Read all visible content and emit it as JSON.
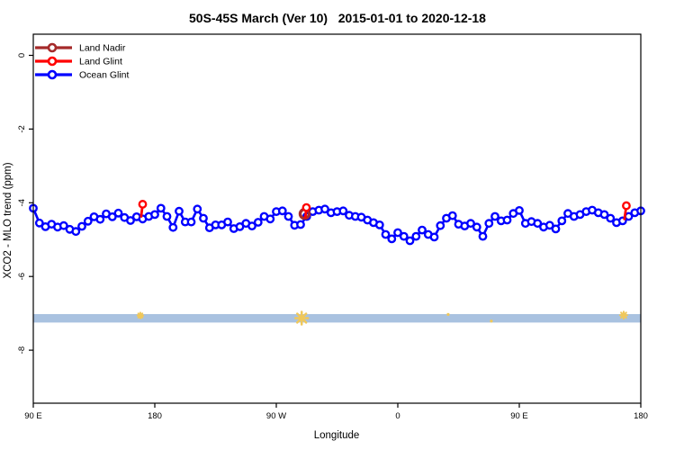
{
  "title": "50S-45S March (Ver 10)   2015-01-01 to 2020-12-18",
  "axes": {
    "x": {
      "label": "Longitude"
    },
    "y": {
      "label": "XCO2 - MLO trend (ppm)"
    }
  },
  "legend": [
    {
      "label": "Land Nadir",
      "color": "#A52A2A"
    },
    {
      "label": "Land Glint",
      "color": "#FF0000"
    },
    {
      "label": "Ocean Glint",
      "color": "#0000FF"
    }
  ],
  "chart_data": {
    "type": "line",
    "title": "50S-45S March (Ver 10)   2015-01-01 to 2020-12-18",
    "xlabel": "Longitude",
    "ylabel": "XCO2 - MLO trend (ppm)",
    "x_domain_deg": [
      90,
      540
    ],
    "x_ticks": [
      {
        "lon": 90,
        "label": "90 E"
      },
      {
        "lon": 180,
        "label": "180"
      },
      {
        "lon": 270,
        "label": "90 W"
      },
      {
        "lon": 360,
        "label": "0"
      },
      {
        "lon": 450,
        "label": "90 E"
      },
      {
        "lon": 540,
        "label": "180"
      }
    ],
    "y_ticks": [
      {
        "value": 0,
        "label": "0"
      },
      {
        "value": -2,
        "label": "-2"
      },
      {
        "value": -4,
        "label": "-4"
      },
      {
        "value": -6,
        "label": "-6"
      },
      {
        "value": -8,
        "label": "-8"
      }
    ],
    "ylim": [
      -9.45,
      0.58
    ],
    "grid": false,
    "legend_position": "top-left",
    "series": [
      {
        "name": "Ocean Glint",
        "color": "#0000FF",
        "marker": "open-circle",
        "lon_start": 90,
        "lon_step": 4.5,
        "values": [
          -4.15,
          -4.55,
          -4.65,
          -4.58,
          -4.66,
          -4.62,
          -4.72,
          -4.78,
          -4.64,
          -4.5,
          -4.38,
          -4.45,
          -4.3,
          -4.38,
          -4.28,
          -4.4,
          -4.48,
          -4.38,
          -4.44,
          -4.37,
          -4.32,
          -4.15,
          -4.37,
          -4.67,
          -4.23,
          -4.52,
          -4.52,
          -4.17,
          -4.42,
          -4.68,
          -4.6,
          -4.6,
          -4.52,
          -4.7,
          -4.65,
          -4.56,
          -4.63,
          -4.53,
          -4.37,
          -4.44,
          -4.24,
          -4.22,
          -4.37,
          -4.61,
          -4.59,
          -4.37,
          -4.24,
          -4.2,
          -4.17,
          -4.27,
          -4.24,
          -4.22,
          -4.34,
          -4.37,
          -4.39,
          -4.47,
          -4.54,
          -4.6,
          -4.86,
          -4.98,
          -4.81,
          -4.91,
          -5.03,
          -4.91,
          -4.74,
          -4.86,
          -4.93,
          -4.62,
          -4.42,
          -4.35,
          -4.58,
          -4.63,
          -4.56,
          -4.66,
          -4.91,
          -4.56,
          -4.37,
          -4.49,
          -4.47,
          -4.29,
          -4.21,
          -4.56,
          -4.51,
          -4.56,
          -4.66,
          -4.61,
          -4.71,
          -4.49,
          -4.29,
          -4.37,
          -4.32,
          -4.24,
          -4.2,
          -4.27,
          -4.32,
          -4.42,
          -4.54,
          -4.49,
          -4.37,
          -4.27,
          -4.22
        ]
      },
      {
        "name": "Land Glint",
        "color": "#FF0000",
        "marker": "open-circle",
        "segments": [
          [
            [
              169.8,
              -4.4
            ],
            [
              171.0,
              -4.04
            ]
          ],
          [
            [
              291.5,
              -4.42
            ],
            [
              292.3,
              -4.13
            ]
          ],
          [
            [
              527.8,
              -4.47
            ],
            [
              529.3,
              -4.08
            ]
          ]
        ]
      },
      {
        "name": "Land Nadir",
        "color": "#A52A2A",
        "marker": "open-circle",
        "points": [
          [
            291.0,
            -4.3
          ]
        ]
      }
    ],
    "land_band": {
      "value_from": -7.02,
      "value_to": -7.25,
      "color": "#a9c2e0"
    },
    "land_marks": {
      "color": "#f0c85a",
      "marks": [
        {
          "lon": 169.3,
          "value": -7.06,
          "size": 3.2
        },
        {
          "lon": 288.8,
          "value": -7.13,
          "size": 7.0
        },
        {
          "lon": 397.3,
          "value": -7.03,
          "size": 1.6
        },
        {
          "lon": 429.3,
          "value": -7.21,
          "size": 1.6
        },
        {
          "lon": 527.3,
          "value": -7.05,
          "size": 4.0
        }
      ]
    }
  }
}
